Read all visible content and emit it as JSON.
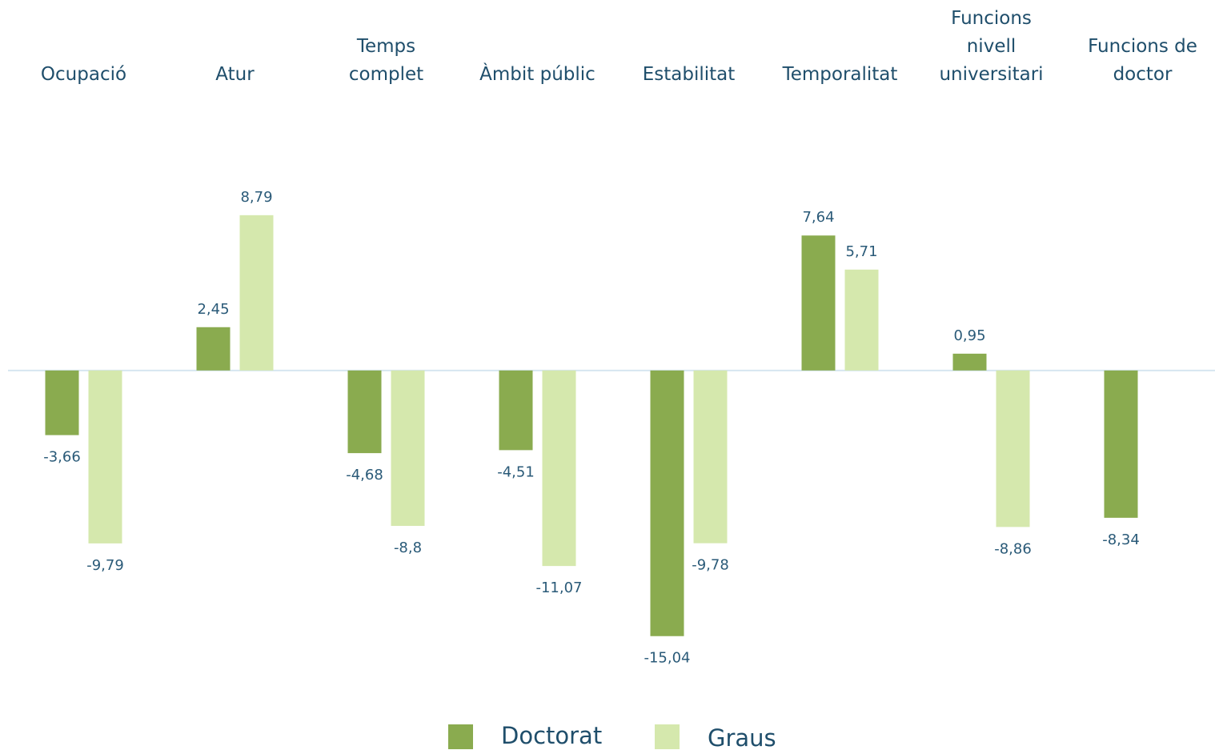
{
  "chart_data": {
    "type": "bar",
    "categories": [
      "Ocupació",
      "Atur",
      "Temps\ncomplet",
      "Àmbit públic",
      "Estabilitat",
      "Temporalitat",
      "Funcions\nnivell\nuniversitari",
      "Funcions de\ndoctor"
    ],
    "series": [
      {
        "name": "Doctorat",
        "color": "#8aab4f",
        "values": [
          -3.66,
          2.45,
          -4.68,
          -4.51,
          -15.04,
          7.64,
          0.95,
          -8.34
        ],
        "value_labels": [
          "-3,66",
          "2,45",
          "-4,68",
          "-4,51",
          "-15,04",
          "7,64",
          "0,95",
          "-8,34"
        ]
      },
      {
        "name": "Graus",
        "color": "#d5e8ad",
        "values": [
          -9.79,
          8.79,
          -8.8,
          -11.07,
          -9.78,
          5.71,
          -8.86,
          null
        ],
        "value_labels": [
          "-9,79",
          "8,79",
          "-8,8",
          "-11,07",
          "-9,78",
          "5,71",
          "-8,86",
          null
        ]
      }
    ],
    "ylim": [
      -17,
      12
    ]
  }
}
